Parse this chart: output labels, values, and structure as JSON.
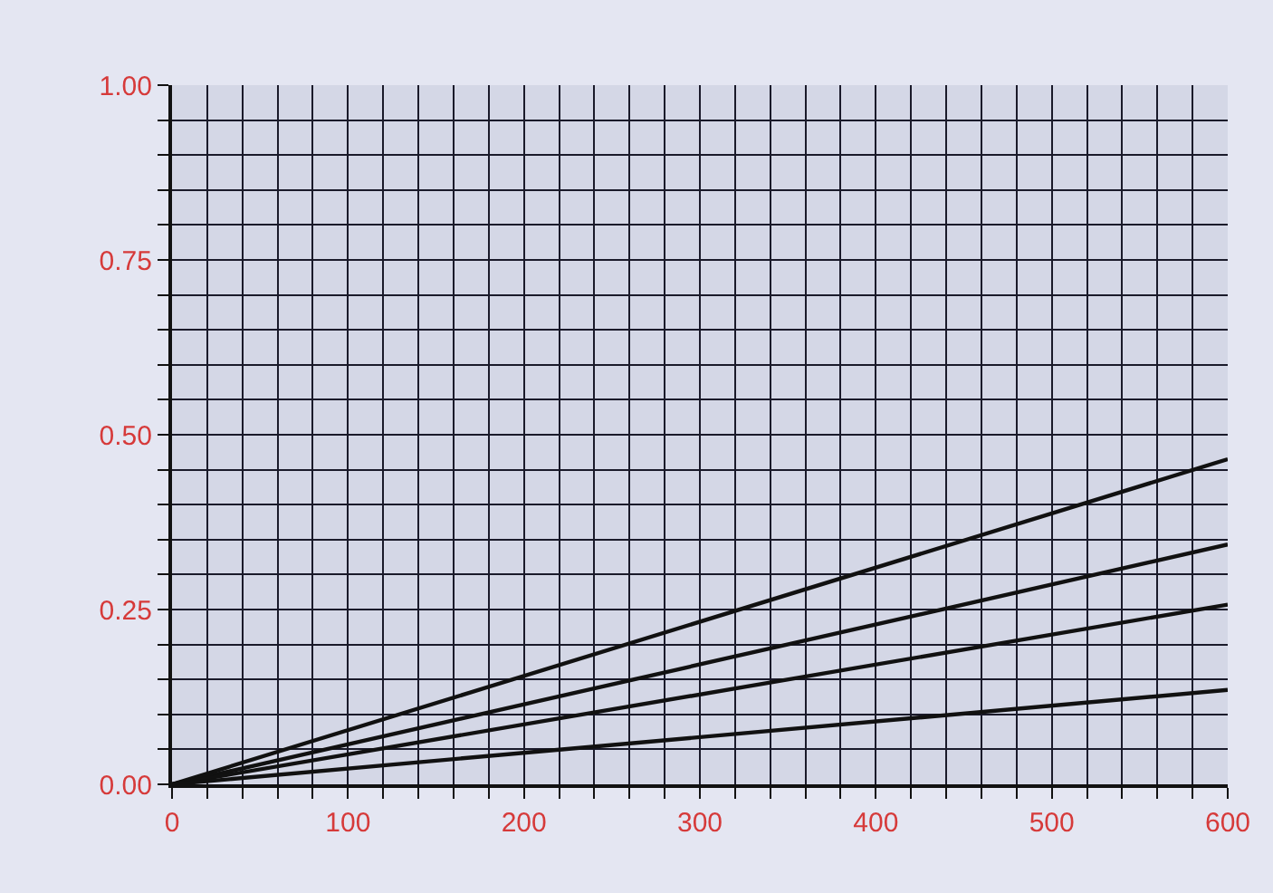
{
  "chart_data": {
    "type": "line",
    "x": [
      0,
      600
    ],
    "series": [
      {
        "color": "#111111",
        "values": [
          0,
          0.465
        ]
      },
      {
        "color": "#111111",
        "values": [
          0,
          0.343
        ]
      },
      {
        "color": "#111111",
        "values": [
          0,
          0.257
        ]
      },
      {
        "color": "#111111",
        "values": [
          0,
          0.135
        ]
      }
    ],
    "xlim": [
      0,
      600
    ],
    "ylim": [
      0,
      1
    ],
    "xticks": [
      0,
      {
        "value": 20,
        "label": null
      },
      {
        "value": 40,
        "label": null
      },
      {
        "value": 60,
        "label": null
      },
      {
        "value": 80,
        "label": null
      },
      100,
      {
        "value": 120,
        "label": null
      },
      {
        "value": 140,
        "label": null
      },
      {
        "value": 160,
        "label": null
      },
      {
        "value": 180,
        "label": null
      },
      200,
      {
        "value": 220,
        "label": null
      },
      {
        "value": 240,
        "label": null
      },
      {
        "value": 260,
        "label": null
      },
      {
        "value": 280,
        "label": null
      },
      300,
      {
        "value": 320,
        "label": null
      },
      {
        "value": 340,
        "label": null
      },
      {
        "value": 360,
        "label": null
      },
      {
        "value": 380,
        "label": null
      },
      400,
      {
        "value": 420,
        "label": null
      },
      {
        "value": 440,
        "label": null
      },
      {
        "value": 460,
        "label": null
      },
      {
        "value": 480,
        "label": null
      },
      500,
      {
        "value": 520,
        "label": null
      },
      {
        "value": 540,
        "label": null
      },
      {
        "value": 560,
        "label": null
      },
      {
        "value": 580,
        "label": null
      },
      600
    ],
    "yticks": [
      {
        "value": 0,
        "label": "0.00"
      },
      {
        "value": 0.05,
        "label": null
      },
      {
        "value": 0.1,
        "label": null
      },
      {
        "value": 0.15,
        "label": null
      },
      {
        "value": 0.2,
        "label": null
      },
      {
        "value": 0.25,
        "label": "0.25"
      },
      {
        "value": 0.3,
        "label": null
      },
      {
        "value": 0.35,
        "label": null
      },
      {
        "value": 0.4,
        "label": null
      },
      {
        "value": 0.45,
        "label": null
      },
      {
        "value": 0.5,
        "label": "0.50"
      },
      {
        "value": 0.55,
        "label": null
      },
      {
        "value": 0.6,
        "label": null
      },
      {
        "value": 0.65,
        "label": null
      },
      {
        "value": 0.7,
        "label": null
      },
      {
        "value": 0.75,
        "label": "0.75"
      },
      {
        "value": 0.8,
        "label": null
      },
      {
        "value": 0.85,
        "label": null
      },
      {
        "value": 0.9,
        "label": null
      },
      {
        "value": 0.95,
        "label": null
      },
      {
        "value": 1,
        "label": "1.00"
      }
    ],
    "grid": true,
    "marker": "none",
    "line_style": "solid"
  }
}
